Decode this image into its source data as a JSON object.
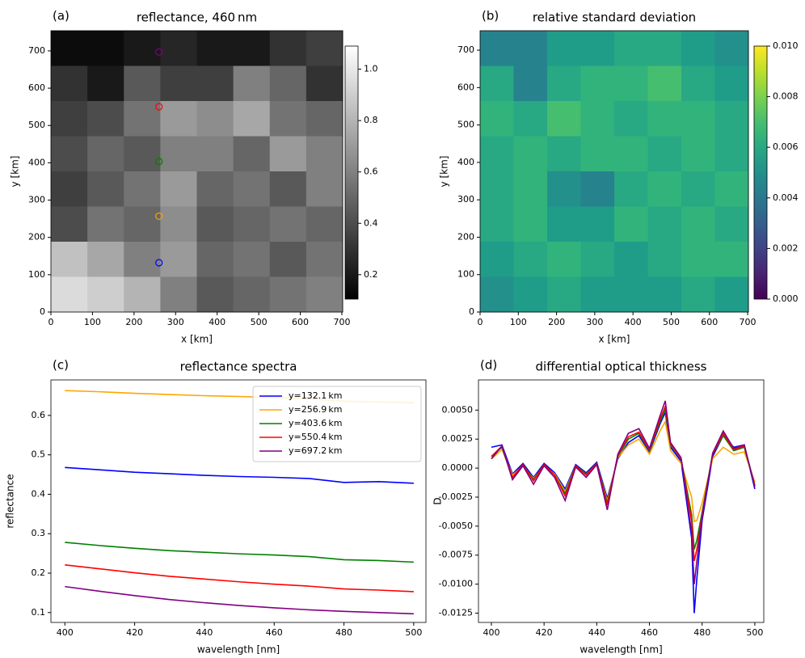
{
  "chart_data": [
    {
      "type": "heatmap",
      "panel_label": "(a)",
      "title": "reflectance, 460 nm",
      "xlabel": "x [km]",
      "ylabel": "y [km]",
      "xlim": [
        0,
        702
      ],
      "ylim": [
        0,
        754
      ],
      "xticks": [
        0,
        100,
        200,
        300,
        400,
        500,
        600,
        700
      ],
      "yticks": [
        0,
        100,
        200,
        300,
        400,
        500,
        600,
        700
      ],
      "colormap": "gray",
      "clim": [
        0.105,
        1.09
      ],
      "cticks": [
        0.2,
        0.4,
        0.6,
        0.8,
        {
          "value": 1,
          "label": "1.0"
        }
      ],
      "z": [
        [
          0.15,
          0.15,
          0.2,
          0.25,
          0.2,
          0.2,
          0.3,
          0.35
        ],
        [
          0.3,
          0.2,
          0.45,
          0.35,
          0.35,
          0.6,
          0.5,
          0.3
        ],
        [
          0.35,
          0.4,
          0.55,
          0.7,
          0.65,
          0.75,
          0.55,
          0.5
        ],
        [
          0.4,
          0.5,
          0.45,
          0.6,
          0.6,
          0.5,
          0.7,
          0.6
        ],
        [
          0.35,
          0.45,
          0.55,
          0.7,
          0.5,
          0.55,
          0.45,
          0.6
        ],
        [
          0.4,
          0.55,
          0.5,
          0.65,
          0.45,
          0.5,
          0.55,
          0.5
        ],
        [
          0.85,
          0.75,
          0.6,
          0.7,
          0.5,
          0.55,
          0.45,
          0.55
        ],
        [
          0.95,
          0.9,
          0.8,
          0.6,
          0.45,
          0.5,
          0.55,
          0.6
        ]
      ],
      "markers": [
        {
          "x": 260,
          "y": 132.1,
          "color": "#0000ff"
        },
        {
          "x": 260,
          "y": 256.9,
          "color": "#ffa500"
        },
        {
          "x": 260,
          "y": 403.6,
          "color": "#008000"
        },
        {
          "x": 260,
          "y": 550.4,
          "color": "#ff0000"
        },
        {
          "x": 260,
          "y": 697.2,
          "color": "#800080"
        }
      ]
    },
    {
      "type": "heatmap",
      "panel_label": "(b)",
      "title": "relative standard deviation",
      "xlabel": "x [km]",
      "ylabel": "y [km]",
      "xlim": [
        0,
        702
      ],
      "ylim": [
        0,
        752
      ],
      "xticks": [
        0,
        100,
        200,
        300,
        400,
        500,
        600,
        700
      ],
      "yticks": [
        0,
        100,
        200,
        300,
        400,
        500,
        600,
        700
      ],
      "colormap": "viridis",
      "clim": [
        0,
        0.01
      ],
      "cticks": [
        {
          "value": 0,
          "label": "0.000"
        },
        0.002,
        0.004,
        0.006,
        0.008,
        {
          "value": 0.01,
          "label": "0.010"
        }
      ],
      "z": [
        [
          0.0045,
          0.0045,
          0.0055,
          0.0055,
          0.006,
          0.006,
          0.0055,
          0.005
        ],
        [
          0.006,
          0.0045,
          0.006,
          0.0065,
          0.0065,
          0.007,
          0.006,
          0.0055
        ],
        [
          0.0065,
          0.006,
          0.007,
          0.0065,
          0.006,
          0.0065,
          0.0065,
          0.006
        ],
        [
          0.006,
          0.0065,
          0.006,
          0.0065,
          0.0065,
          0.006,
          0.0065,
          0.006
        ],
        [
          0.006,
          0.0065,
          0.005,
          0.0045,
          0.006,
          0.0065,
          0.006,
          0.0065
        ],
        [
          0.006,
          0.0065,
          0.0055,
          0.0055,
          0.0065,
          0.006,
          0.0065,
          0.006
        ],
        [
          0.0055,
          0.006,
          0.0065,
          0.006,
          0.0055,
          0.006,
          0.0065,
          0.0065
        ],
        [
          0.005,
          0.0055,
          0.006,
          0.0055,
          0.0055,
          0.0055,
          0.006,
          0.0055
        ]
      ]
    },
    {
      "type": "line",
      "panel_label": "(c)",
      "title": "reflectance spectra",
      "xlabel": "wavelength [nm]",
      "ylabel": "reflectance",
      "xlim": [
        396,
        503.5
      ],
      "ylim": [
        0.075,
        0.69
      ],
      "xticks": [
        400,
        420,
        440,
        460,
        480,
        500
      ],
      "yticks": [
        0.1,
        0.2,
        0.3,
        0.4,
        0.5,
        0.6
      ],
      "legend": "upper right",
      "x": [
        400,
        410,
        420,
        430,
        440,
        450,
        460,
        470,
        480,
        490,
        500
      ],
      "series": [
        {
          "name": "y=132.1 km",
          "color": "#0000ff",
          "values": [
            0.468,
            0.462,
            0.456,
            0.452,
            0.448,
            0.445,
            0.443,
            0.44,
            0.43,
            0.432,
            0.428
          ]
        },
        {
          "name": "y=256.9 km",
          "color": "#ffa500",
          "values": [
            0.663,
            0.66,
            0.656,
            0.653,
            0.65,
            0.648,
            0.645,
            0.642,
            0.636,
            0.634,
            0.632
          ]
        },
        {
          "name": "y=403.6 km",
          "color": "#008000",
          "values": [
            0.278,
            0.27,
            0.263,
            0.257,
            0.253,
            0.249,
            0.246,
            0.242,
            0.234,
            0.232,
            0.228
          ]
        },
        {
          "name": "y=550.4 km",
          "color": "#ff0000",
          "values": [
            0.221,
            0.211,
            0.201,
            0.192,
            0.185,
            0.178,
            0.172,
            0.167,
            0.16,
            0.157,
            0.153
          ]
        },
        {
          "name": "y=697.2 km",
          "color": "#800080",
          "values": [
            0.166,
            0.154,
            0.143,
            0.133,
            0.125,
            0.118,
            0.112,
            0.107,
            0.103,
            0.1,
            0.097
          ]
        }
      ]
    },
    {
      "type": "line",
      "panel_label": "(d)",
      "title": "differential optical thickness",
      "xlabel": "wavelength [nm]",
      "ylabel": "D",
      "xlim": [
        395.1,
        503.4
      ],
      "ylim": [
        -0.0133,
        0.0076
      ],
      "xticks": [
        400,
        420,
        440,
        460,
        480,
        500
      ],
      "yticks": [
        -0.0125,
        {
          "value": -0.01,
          "label": "-0.0100"
        },
        -0.0075,
        {
          "value": -0.005,
          "label": "-0.0050"
        },
        -0.0025,
        {
          "value": 0,
          "label": "0.0000"
        },
        0.0025,
        {
          "value": 0.005,
          "label": "0.0050"
        }
      ],
      "x": [
        400,
        404,
        408,
        412,
        416,
        420,
        424,
        428,
        432,
        436,
        440,
        444,
        448,
        452,
        456,
        460,
        464,
        466,
        468,
        472,
        476,
        477,
        478,
        480,
        484,
        488,
        492,
        496,
        500
      ],
      "series": [
        {
          "color": "#0000ff",
          "values": [
            0.0018,
            0.002,
            -0.0005,
            0.0004,
            -0.0008,
            0.0004,
            -0.0004,
            -0.0018,
            0.0003,
            -0.0004,
            0.0005,
            -0.0026,
            0.0008,
            0.0022,
            0.0028,
            0.0014,
            0.0038,
            0.0048,
            0.0018,
            0.0006,
            -0.006,
            -0.0125,
            -0.0095,
            -0.0045,
            0.001,
            0.0028,
            0.0018,
            0.002,
            -0.0018
          ]
        },
        {
          "color": "#ffa500",
          "values": [
            0.0008,
            0.0016,
            -0.0006,
            0.0002,
            -0.0009,
            0.0002,
            -0.0005,
            -0.002,
            0.0002,
            -0.0005,
            0.0003,
            -0.0028,
            0.0009,
            0.002,
            0.0025,
            0.0012,
            0.0032,
            0.004,
            0.0015,
            0.0004,
            -0.0025,
            -0.0046,
            -0.0045,
            -0.003,
            0.0008,
            0.0018,
            0.0012,
            0.0014,
            -0.0012
          ]
        },
        {
          "color": "#008000",
          "values": [
            0.001,
            0.0018,
            -0.0008,
            0.0003,
            -0.001,
            0.0003,
            -0.0006,
            -0.0022,
            0.0002,
            -0.0005,
            0.0004,
            -0.003,
            0.001,
            0.0025,
            0.003,
            0.0015,
            0.004,
            0.005,
            0.002,
            0.0008,
            -0.004,
            -0.007,
            -0.0062,
            -0.0038,
            0.0012,
            0.0028,
            0.0015,
            0.0018,
            -0.0015
          ]
        },
        {
          "color": "#ff0000",
          "values": [
            0.001,
            0.0019,
            -0.0008,
            0.0003,
            -0.0011,
            0.0003,
            -0.0006,
            -0.0024,
            0.0002,
            -0.0006,
            0.0004,
            -0.0032,
            0.0011,
            0.0027,
            0.0031,
            0.0016,
            0.0042,
            0.0053,
            0.0021,
            0.0008,
            -0.0045,
            -0.008,
            -0.007,
            -0.004,
            0.0012,
            0.003,
            0.0016,
            0.0019,
            -0.0015
          ]
        },
        {
          "color": "#800080",
          "values": [
            0.0008,
            0.0019,
            -0.001,
            0.0002,
            -0.0014,
            0.0002,
            -0.0008,
            -0.0028,
            0.0001,
            -0.0008,
            0.0003,
            -0.0036,
            0.0012,
            0.003,
            0.0034,
            0.0017,
            0.0045,
            0.0058,
            0.0022,
            0.0009,
            -0.0055,
            -0.01,
            -0.008,
            -0.0042,
            0.0013,
            0.0032,
            0.0017,
            0.002,
            -0.0016
          ]
        }
      ]
    }
  ]
}
